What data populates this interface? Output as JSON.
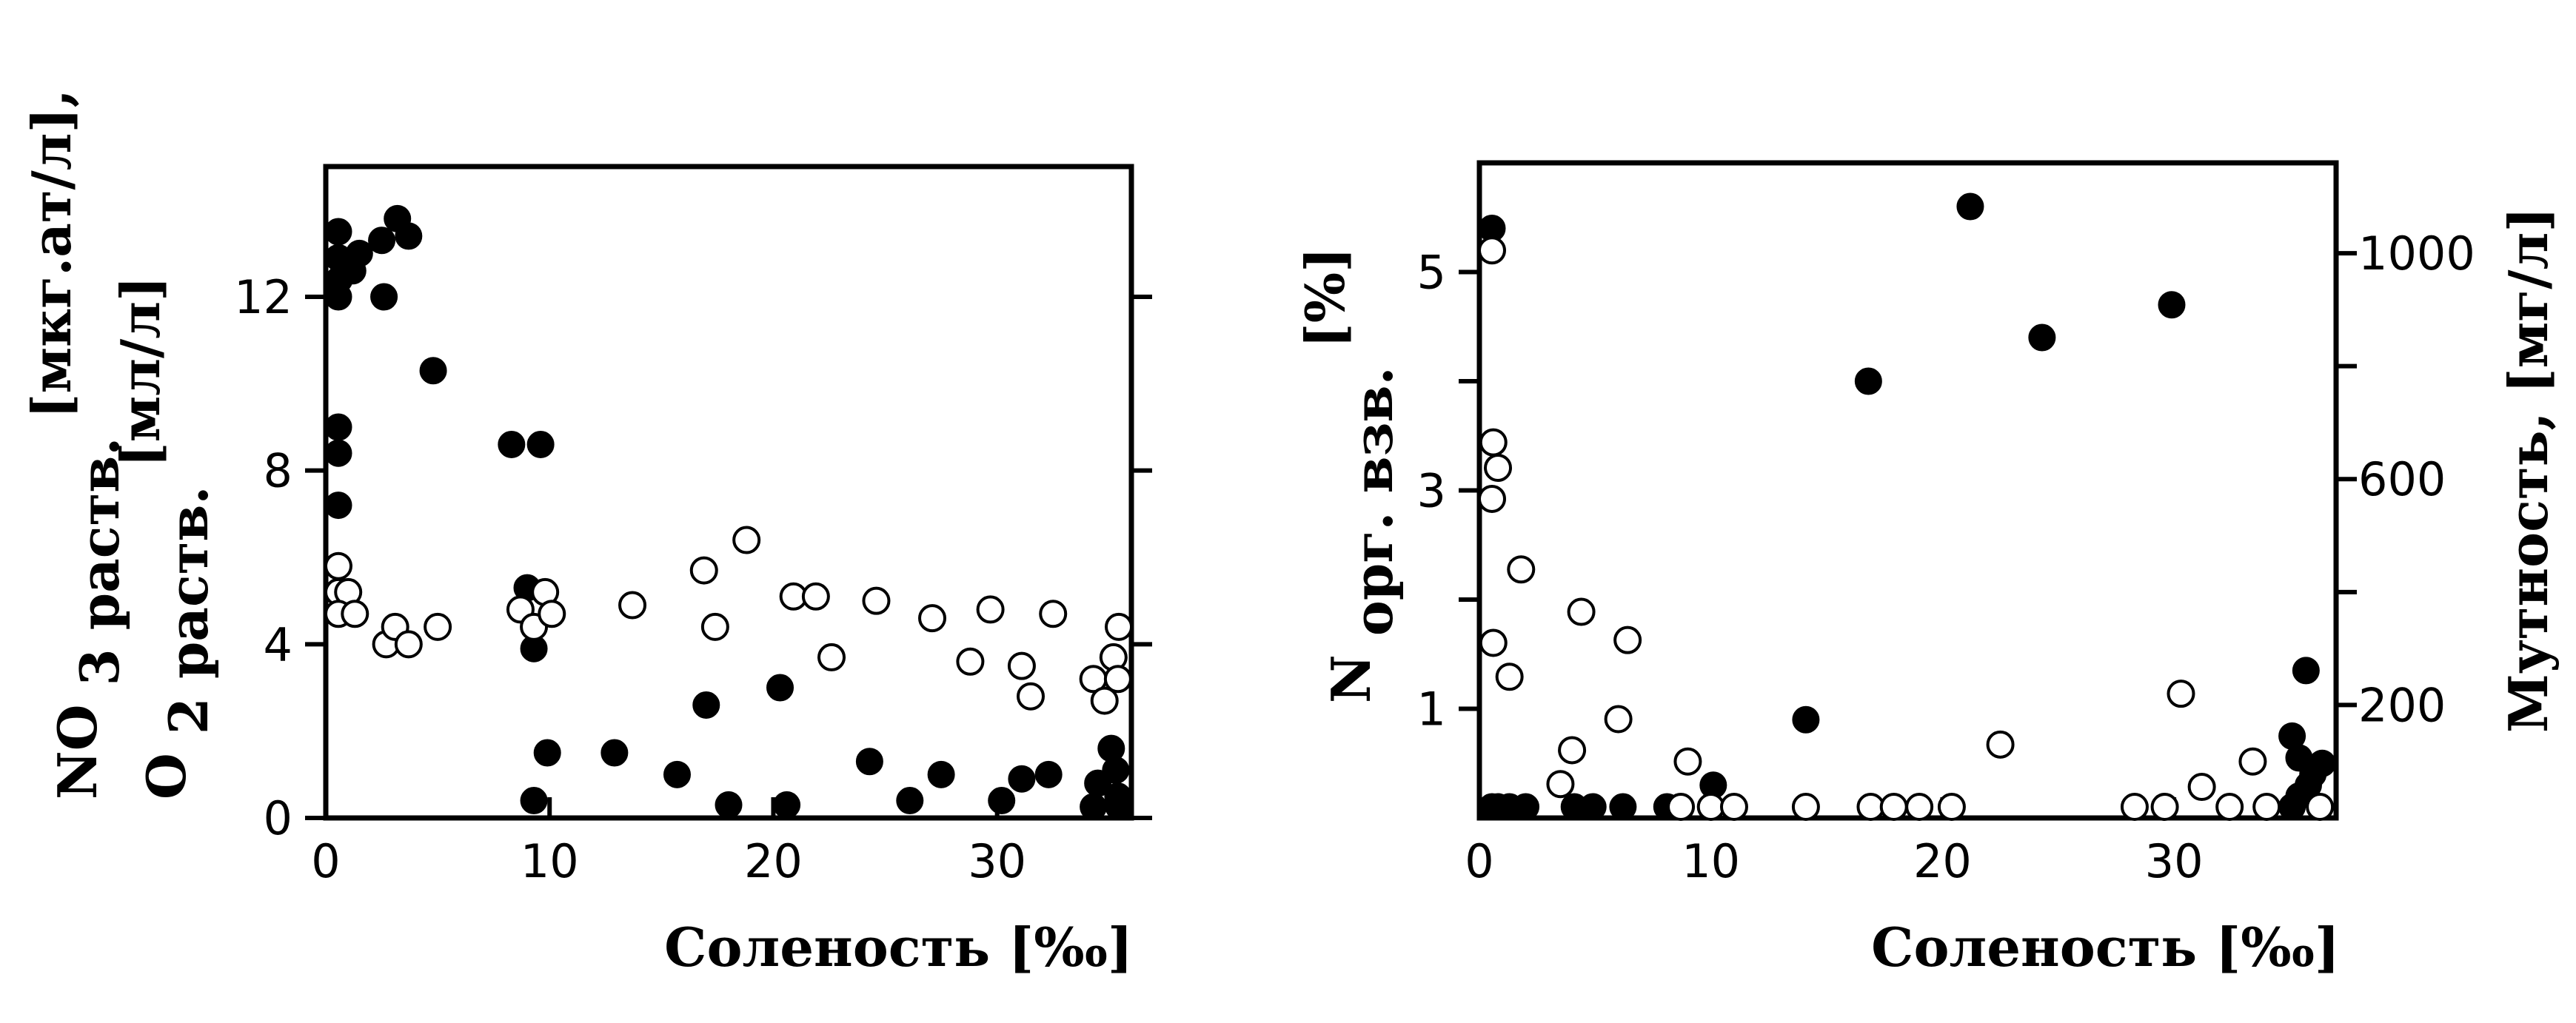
{
  "chart_data": [
    {
      "type": "scatter",
      "xlabel": "Соленость [‰]",
      "ylabel_lines": [
        {
          "main": "NO",
          "sub": "3 раств.",
          "unit": "[мкг.ат/л],"
        },
        {
          "main": "O",
          "sub": "2 раств.",
          "unit": "[мл/л]"
        }
      ],
      "xlim": [
        0,
        36
      ],
      "ylim": [
        0,
        15
      ],
      "xticks": [
        0,
        10,
        20,
        30
      ],
      "xtick_labels": [
        "0",
        "10",
        "20",
        "30"
      ],
      "yticks": [
        0,
        4,
        8,
        12
      ],
      "ytick_labels": [
        "0",
        "4",
        "8",
        "12"
      ],
      "grid": false,
      "series": [
        {
          "marker": "filled",
          "points": [
            [
              0.5,
              13.5
            ],
            [
              0.4,
              12.9
            ],
            [
              0.6,
              12.4
            ],
            [
              0.3,
              12.0
            ],
            [
              1.2,
              12.6
            ],
            [
              1.5,
              13.0
            ],
            [
              2.5,
              13.3
            ],
            [
              3.2,
              13.8
            ],
            [
              3.7,
              13.4
            ],
            [
              2.6,
              12.0
            ],
            [
              4.8,
              10.3
            ],
            [
              0.5,
              9.0
            ],
            [
              0.5,
              8.4
            ],
            [
              0.4,
              7.2
            ],
            [
              8.3,
              8.6
            ],
            [
              9.6,
              8.6
            ],
            [
              9.0,
              5.3
            ],
            [
              9.3,
              3.9
            ],
            [
              9.3,
              0.4
            ],
            [
              9.9,
              1.5
            ],
            [
              12.9,
              1.5
            ],
            [
              15.7,
              1.0
            ],
            [
              17.0,
              2.6
            ],
            [
              18.0,
              0.3
            ],
            [
              20.3,
              3.0
            ],
            [
              20.6,
              0.3
            ],
            [
              24.3,
              1.3
            ],
            [
              26.1,
              0.4
            ],
            [
              27.5,
              1.0
            ],
            [
              30.2,
              0.4
            ],
            [
              31.1,
              0.9
            ],
            [
              32.3,
              1.0
            ],
            [
              34.3,
              0.2
            ],
            [
              34.5,
              0.8
            ],
            [
              35.1,
              1.6
            ],
            [
              35.3,
              1.1
            ],
            [
              35.4,
              0.5
            ],
            [
              35.6,
              0.2
            ]
          ]
        },
        {
          "marker": "open",
          "points": [
            [
              0.4,
              5.8
            ],
            [
              0.5,
              5.2
            ],
            [
              1.0,
              5.2
            ],
            [
              0.4,
              4.7
            ],
            [
              1.3,
              4.7
            ],
            [
              2.7,
              4.0
            ],
            [
              3.1,
              4.4
            ],
            [
              3.7,
              4.0
            ],
            [
              5.0,
              4.4
            ],
            [
              8.7,
              4.8
            ],
            [
              9.3,
              4.4
            ],
            [
              9.8,
              5.2
            ],
            [
              10.1,
              4.7
            ],
            [
              13.7,
              4.9
            ],
            [
              16.9,
              5.7
            ],
            [
              17.4,
              4.4
            ],
            [
              18.8,
              6.4
            ],
            [
              20.9,
              5.1
            ],
            [
              21.9,
              5.1
            ],
            [
              22.6,
              3.7
            ],
            [
              24.6,
              5.0
            ],
            [
              27.1,
              4.6
            ],
            [
              28.8,
              3.6
            ],
            [
              29.7,
              4.8
            ],
            [
              31.1,
              3.5
            ],
            [
              31.5,
              2.8
            ],
            [
              32.5,
              4.7
            ],
            [
              34.3,
              3.2
            ],
            [
              34.8,
              2.7
            ],
            [
              35.2,
              3.7
            ],
            [
              35.4,
              3.2
            ],
            [
              35.5,
              4.4
            ]
          ]
        }
      ]
    },
    {
      "type": "scatter",
      "xlabel": "Соленость [‰]",
      "ylabel_left": {
        "main": "N",
        "sub": "орг. взв.",
        "unit": "[%]"
      },
      "ylabel_right": "Мутность, [мг/л]",
      "xlim": [
        0,
        37
      ],
      "ylim": [
        0,
        6
      ],
      "xticks": [
        0,
        10,
        20,
        30
      ],
      "xtick_labels": [
        "0",
        "10",
        "20",
        "30"
      ],
      "yticks": [
        1,
        3,
        5
      ],
      "ytick_labels": [
        "1",
        "3",
        "5"
      ],
      "yminor_ticks": [
        2,
        4
      ],
      "y2lim": [
        0,
        1160
      ],
      "y2ticks": [
        200,
        600,
        1000
      ],
      "y2tick_labels": [
        "200",
        "600",
        "1000"
      ],
      "y2minor_ticks": [
        400,
        800
      ],
      "grid": false,
      "series": [
        {
          "marker": "filled",
          "axis": "left",
          "points": [
            [
              0.4,
              5.4
            ],
            [
              0.3,
              0.02
            ],
            [
              0.8,
              0.02
            ],
            [
              1.3,
              0.02
            ],
            [
              2.0,
              0.02
            ],
            [
              4.1,
              0.02
            ],
            [
              4.9,
              0.02
            ],
            [
              6.2,
              0.02
            ],
            [
              8.1,
              0.02
            ],
            [
              10.1,
              0.3
            ],
            [
              14.1,
              0.9
            ],
            [
              16.8,
              4.0
            ],
            [
              21.2,
              5.6
            ],
            [
              24.3,
              4.4
            ],
            [
              29.9,
              4.7
            ],
            [
              35.1,
              0.75
            ],
            [
              35.4,
              0.55
            ],
            [
              35.7,
              1.35
            ],
            [
              36.0,
              0.4
            ],
            [
              36.4,
              0.5
            ],
            [
              35.1,
              0.02
            ],
            [
              35.4,
              0.2
            ],
            [
              35.8,
              0.3
            ]
          ]
        },
        {
          "marker": "open",
          "axis": "right",
          "points": [
            [
              0.5,
              1005
            ],
            [
              0.6,
              665
            ],
            [
              0.8,
              620
            ],
            [
              0.5,
              565
            ],
            [
              0.6,
              310
            ],
            [
              1.3,
              250
            ],
            [
              1.8,
              440
            ],
            [
              3.5,
              60
            ],
            [
              4.0,
              120
            ],
            [
              4.4,
              365
            ],
            [
              6.0,
              175
            ],
            [
              6.4,
              315
            ],
            [
              8.7,
              10
            ],
            [
              9.0,
              100
            ],
            [
              10.0,
              5
            ],
            [
              11.0,
              5
            ],
            [
              14.1,
              5
            ],
            [
              16.9,
              5
            ],
            [
              17.9,
              5
            ],
            [
              19.0,
              5
            ],
            [
              20.4,
              5
            ],
            [
              22.5,
              130
            ],
            [
              28.3,
              5
            ],
            [
              29.6,
              5
            ],
            [
              30.3,
              220
            ],
            [
              31.2,
              55
            ],
            [
              32.4,
              5
            ],
            [
              33.4,
              100
            ],
            [
              34.0,
              5
            ],
            [
              36.3,
              10
            ]
          ]
        }
      ]
    }
  ]
}
